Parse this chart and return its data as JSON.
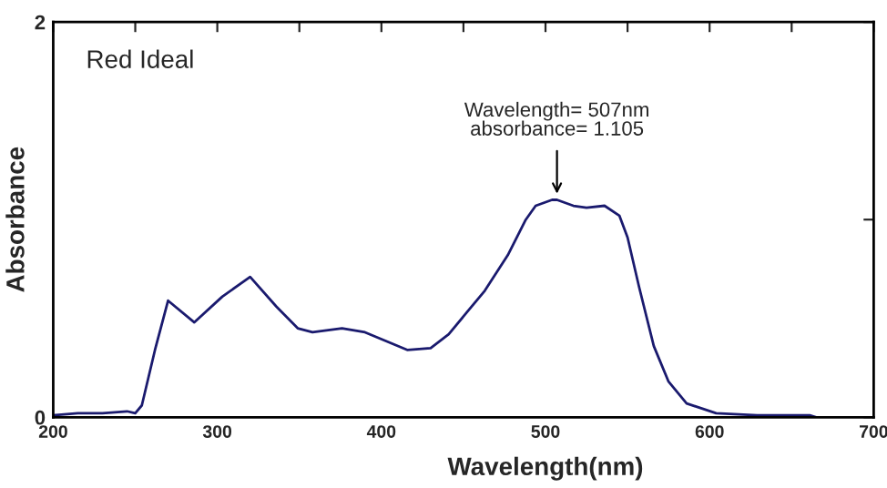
{
  "chart_data": {
    "type": "line",
    "title": "Red Ideal",
    "xlabel": "Wavelength(nm)",
    "ylabel": "Absorbance",
    "x": [
      200,
      215,
      230,
      245,
      250,
      254,
      262,
      270,
      286,
      303,
      320,
      336,
      349,
      358,
      376,
      390,
      416,
      430,
      441,
      452,
      463,
      477,
      488,
      494,
      504,
      507,
      517,
      525,
      536,
      545,
      550,
      557,
      566,
      575,
      586,
      604,
      629,
      661,
      665
    ],
    "series": [
      {
        "color": "#1a1a6e",
        "values": [
          0.01,
          0.02,
          0.02,
          0.03,
          0.02,
          0.06,
          0.34,
          0.59,
          0.48,
          0.61,
          0.71,
          0.56,
          0.45,
          0.43,
          0.45,
          0.43,
          0.34,
          0.35,
          0.42,
          0.53,
          0.64,
          0.82,
          1.0,
          1.07,
          1.1,
          1.1,
          1.07,
          1.06,
          1.07,
          1.02,
          0.91,
          0.66,
          0.36,
          0.18,
          0.07,
          0.02,
          0.01,
          0.01,
          0.0
        ]
      }
    ],
    "xlim": [
      200,
      700
    ],
    "ylim": [
      0,
      2
    ],
    "xticks": [
      200,
      {
        "value": 250,
        "label": null
      },
      300,
      {
        "value": 350,
        "label": null
      },
      400,
      {
        "value": 450,
        "label": null
      },
      500,
      {
        "value": 550,
        "label": null
      },
      600,
      {
        "value": 650,
        "label": null
      },
      700
    ],
    "yticks": [
      0,
      {
        "value": 1,
        "label": null
      },
      2
    ],
    "annotations": [
      {
        "text": "Wavelength= 507nm\nabsorbance= 1.105",
        "x": 507,
        "y": 1.105
      }
    ],
    "grid": false,
    "legend": false,
    "marker": "none",
    "line_style": "solid"
  }
}
